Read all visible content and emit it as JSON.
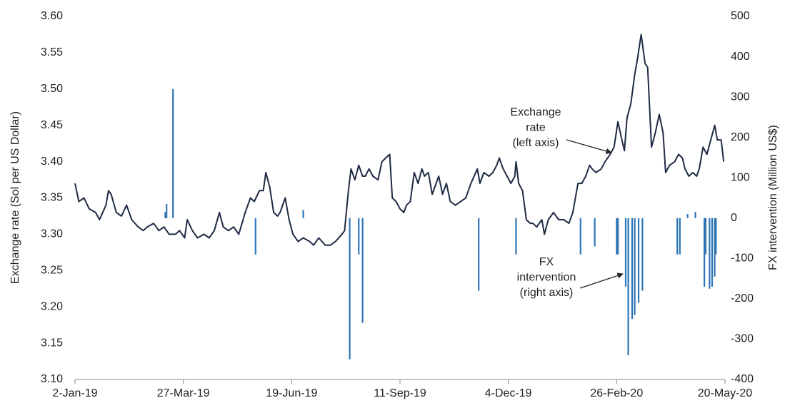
{
  "chart_data": {
    "type": "line",
    "ylabel": "Exchange  rate (Sol per US Dollar)",
    "y2label": "FX intervention  (Million US$)",
    "xlim": [
      "2019-01-02",
      "2020-05-20"
    ],
    "xticks": [
      {
        "value": "2019-01-02",
        "label": "2-Jan-19"
      },
      {
        "value": "2019-03-27",
        "label": "27-Mar-19"
      },
      {
        "value": "2019-06-19",
        "label": "19-Jun-19"
      },
      {
        "value": "2019-09-11",
        "label": "11-Sep-19"
      },
      {
        "value": "2019-12-04",
        "label": "4-Dec-19"
      },
      {
        "value": "2020-02-26",
        "label": "26-Feb-20"
      },
      {
        "value": "2020-05-20",
        "label": "20-May-20"
      }
    ],
    "ylim": [
      3.1,
      3.6
    ],
    "yticks": [
      {
        "value": 3.1,
        "label": "3.10"
      },
      3.15,
      {
        "value": 3.2,
        "label": "3.20"
      },
      3.25,
      {
        "value": 3.3,
        "label": "3.30"
      },
      3.35,
      {
        "value": 3.4,
        "label": "3.40"
      },
      3.45,
      {
        "value": 3.5,
        "label": "3.50"
      },
      3.55,
      {
        "value": 3.6,
        "label": "3.60"
      }
    ],
    "y2lim": [
      -400,
      500
    ],
    "y2ticks": [
      -400,
      -300,
      -200,
      -100,
      0,
      100,
      200,
      300,
      400,
      500
    ],
    "series": [
      {
        "type": "line",
        "color": "#1f2a44",
        "x": [
          "2019-01-02",
          "2019-01-05",
          "2019-01-09",
          "2019-01-13",
          "2019-01-18",
          "2019-01-21",
          "2019-01-26",
          "2019-01-28",
          "2019-01-30",
          "2019-02-03",
          "2019-02-07",
          "2019-02-11",
          "2019-02-15",
          "2019-02-20",
          "2019-02-24",
          "2019-02-27",
          "2019-03-04",
          "2019-03-08",
          "2019-03-12",
          "2019-03-16",
          "2019-03-21",
          "2019-03-24",
          "2019-03-28",
          "2019-03-30",
          "2019-04-03",
          "2019-04-07",
          "2019-04-12",
          "2019-04-16",
          "2019-04-20",
          "2019-04-24",
          "2019-04-27",
          "2019-05-01",
          "2019-05-05",
          "2019-05-09",
          "2019-05-14",
          "2019-05-18",
          "2019-05-21",
          "2019-05-25",
          "2019-05-28",
          "2019-05-30",
          "2019-06-02",
          "2019-06-05",
          "2019-06-08",
          "2019-06-10",
          "2019-06-14",
          "2019-06-17",
          "2019-06-20",
          "2019-06-24",
          "2019-06-28",
          "2019-07-03",
          "2019-07-06",
          "2019-07-10",
          "2019-07-15",
          "2019-07-19",
          "2019-07-23",
          "2019-07-28",
          "2019-07-30",
          "2019-08-02",
          "2019-08-04",
          "2019-08-07",
          "2019-08-10",
          "2019-08-13",
          "2019-08-15",
          "2019-08-18",
          "2019-08-21",
          "2019-08-25",
          "2019-08-28",
          "2019-08-31",
          "2019-09-03",
          "2019-09-05",
          "2019-09-08",
          "2019-09-11",
          "2019-09-14",
          "2019-09-16",
          "2019-09-19",
          "2019-09-22",
          "2019-09-25",
          "2019-09-28",
          "2019-09-30",
          "2019-10-03",
          "2019-10-06",
          "2019-10-09",
          "2019-10-11",
          "2019-10-14",
          "2019-10-17",
          "2019-10-20",
          "2019-10-24",
          "2019-10-28",
          "2019-11-01",
          "2019-11-05",
          "2019-11-10",
          "2019-11-12",
          "2019-11-15",
          "2019-11-19",
          "2019-11-22",
          "2019-11-25",
          "2019-11-27",
          "2019-11-30",
          "2019-12-03",
          "2019-12-06",
          "2019-12-09",
          "2019-12-10",
          "2019-12-12",
          "2019-12-15",
          "2019-12-18",
          "2019-12-21",
          "2019-12-23",
          "2019-12-26",
          "2019-12-30",
          "2020-01-01",
          "2020-01-04",
          "2020-01-08",
          "2020-01-12",
          "2020-01-16",
          "2020-01-20",
          "2020-01-23",
          "2020-01-27",
          "2020-01-30",
          "2020-02-02",
          "2020-02-05",
          "2020-02-07",
          "2020-02-10",
          "2020-02-14",
          "2020-02-17",
          "2020-02-21",
          "2020-02-24",
          "2020-02-27",
          "2020-03-01",
          "2020-03-03",
          "2020-03-05",
          "2020-03-08",
          "2020-03-11",
          "2020-03-13",
          "2020-03-16",
          "2020-03-19",
          "2020-03-21",
          "2020-03-24",
          "2020-03-27",
          "2020-03-30",
          "2020-04-02",
          "2020-04-04",
          "2020-04-07",
          "2020-04-11",
          "2020-04-14",
          "2020-04-17",
          "2020-04-19",
          "2020-04-22",
          "2020-04-25",
          "2020-04-28",
          "2020-04-30",
          "2020-05-03",
          "2020-05-06",
          "2020-05-09",
          "2020-05-12",
          "2020-05-14",
          "2020-05-17",
          "2020-05-19"
        ],
        "values": [
          3.37,
          3.345,
          3.35,
          3.335,
          3.33,
          3.32,
          3.34,
          3.36,
          3.355,
          3.33,
          3.325,
          3.34,
          3.32,
          3.31,
          3.305,
          3.31,
          3.315,
          3.305,
          3.31,
          3.3,
          3.3,
          3.305,
          3.295,
          3.32,
          3.305,
          3.295,
          3.3,
          3.295,
          3.305,
          3.33,
          3.31,
          3.305,
          3.31,
          3.3,
          3.33,
          3.35,
          3.345,
          3.36,
          3.36,
          3.385,
          3.365,
          3.33,
          3.325,
          3.33,
          3.35,
          3.32,
          3.3,
          3.29,
          3.295,
          3.29,
          3.285,
          3.295,
          3.285,
          3.285,
          3.29,
          3.3,
          3.305,
          3.36,
          3.39,
          3.375,
          3.395,
          3.38,
          3.38,
          3.39,
          3.38,
          3.375,
          3.4,
          3.405,
          3.41,
          3.35,
          3.345,
          3.335,
          3.33,
          3.34,
          3.345,
          3.385,
          3.37,
          3.39,
          3.38,
          3.385,
          3.355,
          3.37,
          3.38,
          3.355,
          3.37,
          3.345,
          3.34,
          3.345,
          3.35,
          3.37,
          3.39,
          3.37,
          3.385,
          3.38,
          3.385,
          3.395,
          3.405,
          3.39,
          3.38,
          3.37,
          3.38,
          3.4,
          3.37,
          3.36,
          3.32,
          3.315,
          3.315,
          3.31,
          3.32,
          3.3,
          3.32,
          3.33,
          3.32,
          3.32,
          3.315,
          3.33,
          3.37,
          3.37,
          3.38,
          3.395,
          3.39,
          3.385,
          3.39,
          3.4,
          3.41,
          3.42,
          3.455,
          3.43,
          3.415,
          3.46,
          3.48,
          3.52,
          3.54,
          3.575,
          3.535,
          3.53,
          3.42,
          3.44,
          3.465,
          3.44,
          3.385,
          3.395,
          3.4,
          3.41,
          3.405,
          3.39,
          3.38,
          3.385,
          3.38,
          3.39,
          3.42,
          3.41,
          3.43,
          3.45,
          3.43,
          3.43,
          3.4
        ]
      },
      {
        "type": "bar",
        "axis": "y2",
        "color": "#2e75b6",
        "x": [
          "2019-03-13",
          "2019-03-14",
          "2019-03-19",
          "2019-05-22",
          "2019-06-28",
          "2019-08-03",
          "2019-08-10",
          "2019-08-13",
          "2019-11-11",
          "2019-12-10",
          "2020-01-29",
          "2020-02-09",
          "2020-02-26",
          "2020-02-27",
          "2020-03-04",
          "2020-03-06",
          "2020-03-09",
          "2020-03-11",
          "2020-03-14",
          "2020-03-17",
          "2020-04-13",
          "2020-04-15",
          "2020-04-21",
          "2020-04-27",
          "2020-05-04",
          "2020-05-05",
          "2020-05-08",
          "2020-05-10",
          "2020-05-12",
          "2020-05-13"
        ],
        "values": [
          15,
          35,
          320,
          -90,
          20,
          -350,
          -90,
          -260,
          -180,
          -90,
          -90,
          -70,
          -90,
          -90,
          -170,
          -340,
          -250,
          -240,
          -210,
          -180,
          -90,
          -90,
          10,
          15,
          -170,
          -90,
          -175,
          -170,
          -145,
          -90
        ]
      }
    ],
    "annotations": [
      {
        "lines": [
          "Exchange",
          "rate",
          "(left axis)"
        ]
      },
      {
        "lines": [
          "FX",
          "intervention",
          "(right axis)"
        ]
      }
    ]
  }
}
